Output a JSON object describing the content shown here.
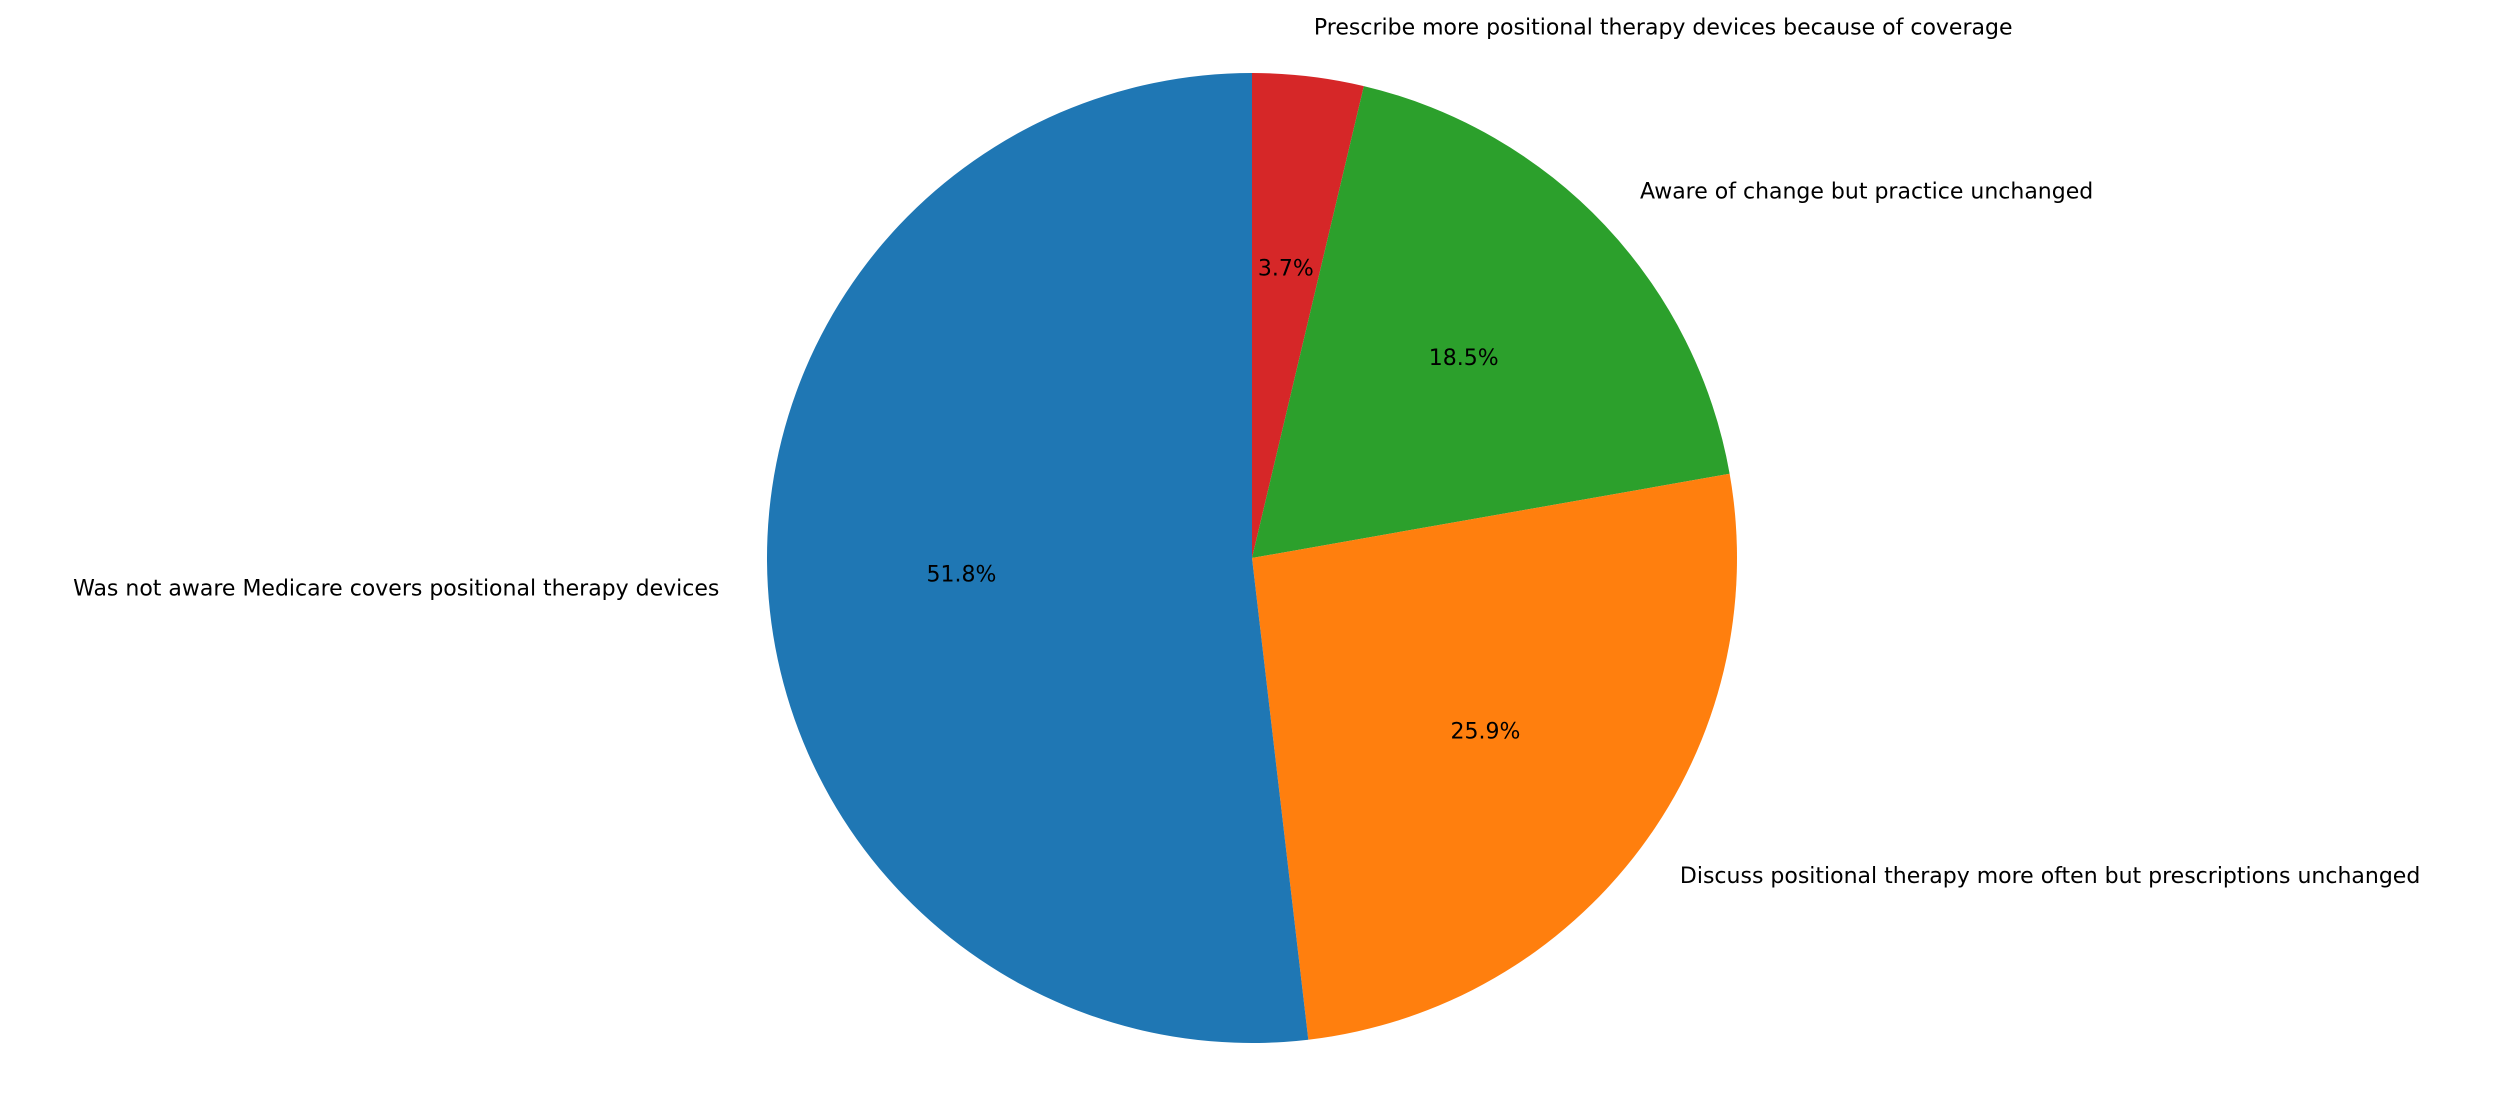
{
  "chart_data": {
    "type": "pie",
    "title": "",
    "start_angle_deg": 90,
    "direction": "clockwise",
    "slices": [
      {
        "label": "Prescribe more positional therapy devices because of coverage",
        "value": 3.7,
        "pct_label": "3.7%",
        "color": "#d62728"
      },
      {
        "label": "Aware of change but practice unchanged",
        "value": 18.5,
        "pct_label": "18.5%",
        "color": "#2ca02c"
      },
      {
        "label": "Discuss positional therapy more often but prescriptions unchanged",
        "value": 25.9,
        "pct_label": "25.9%",
        "color": "#ff7f0e"
      },
      {
        "label": "Was not aware Medicare covers positional therapy devices",
        "value": 51.8,
        "pct_label": "51.8%",
        "color": "#1f77b4"
      }
    ]
  }
}
